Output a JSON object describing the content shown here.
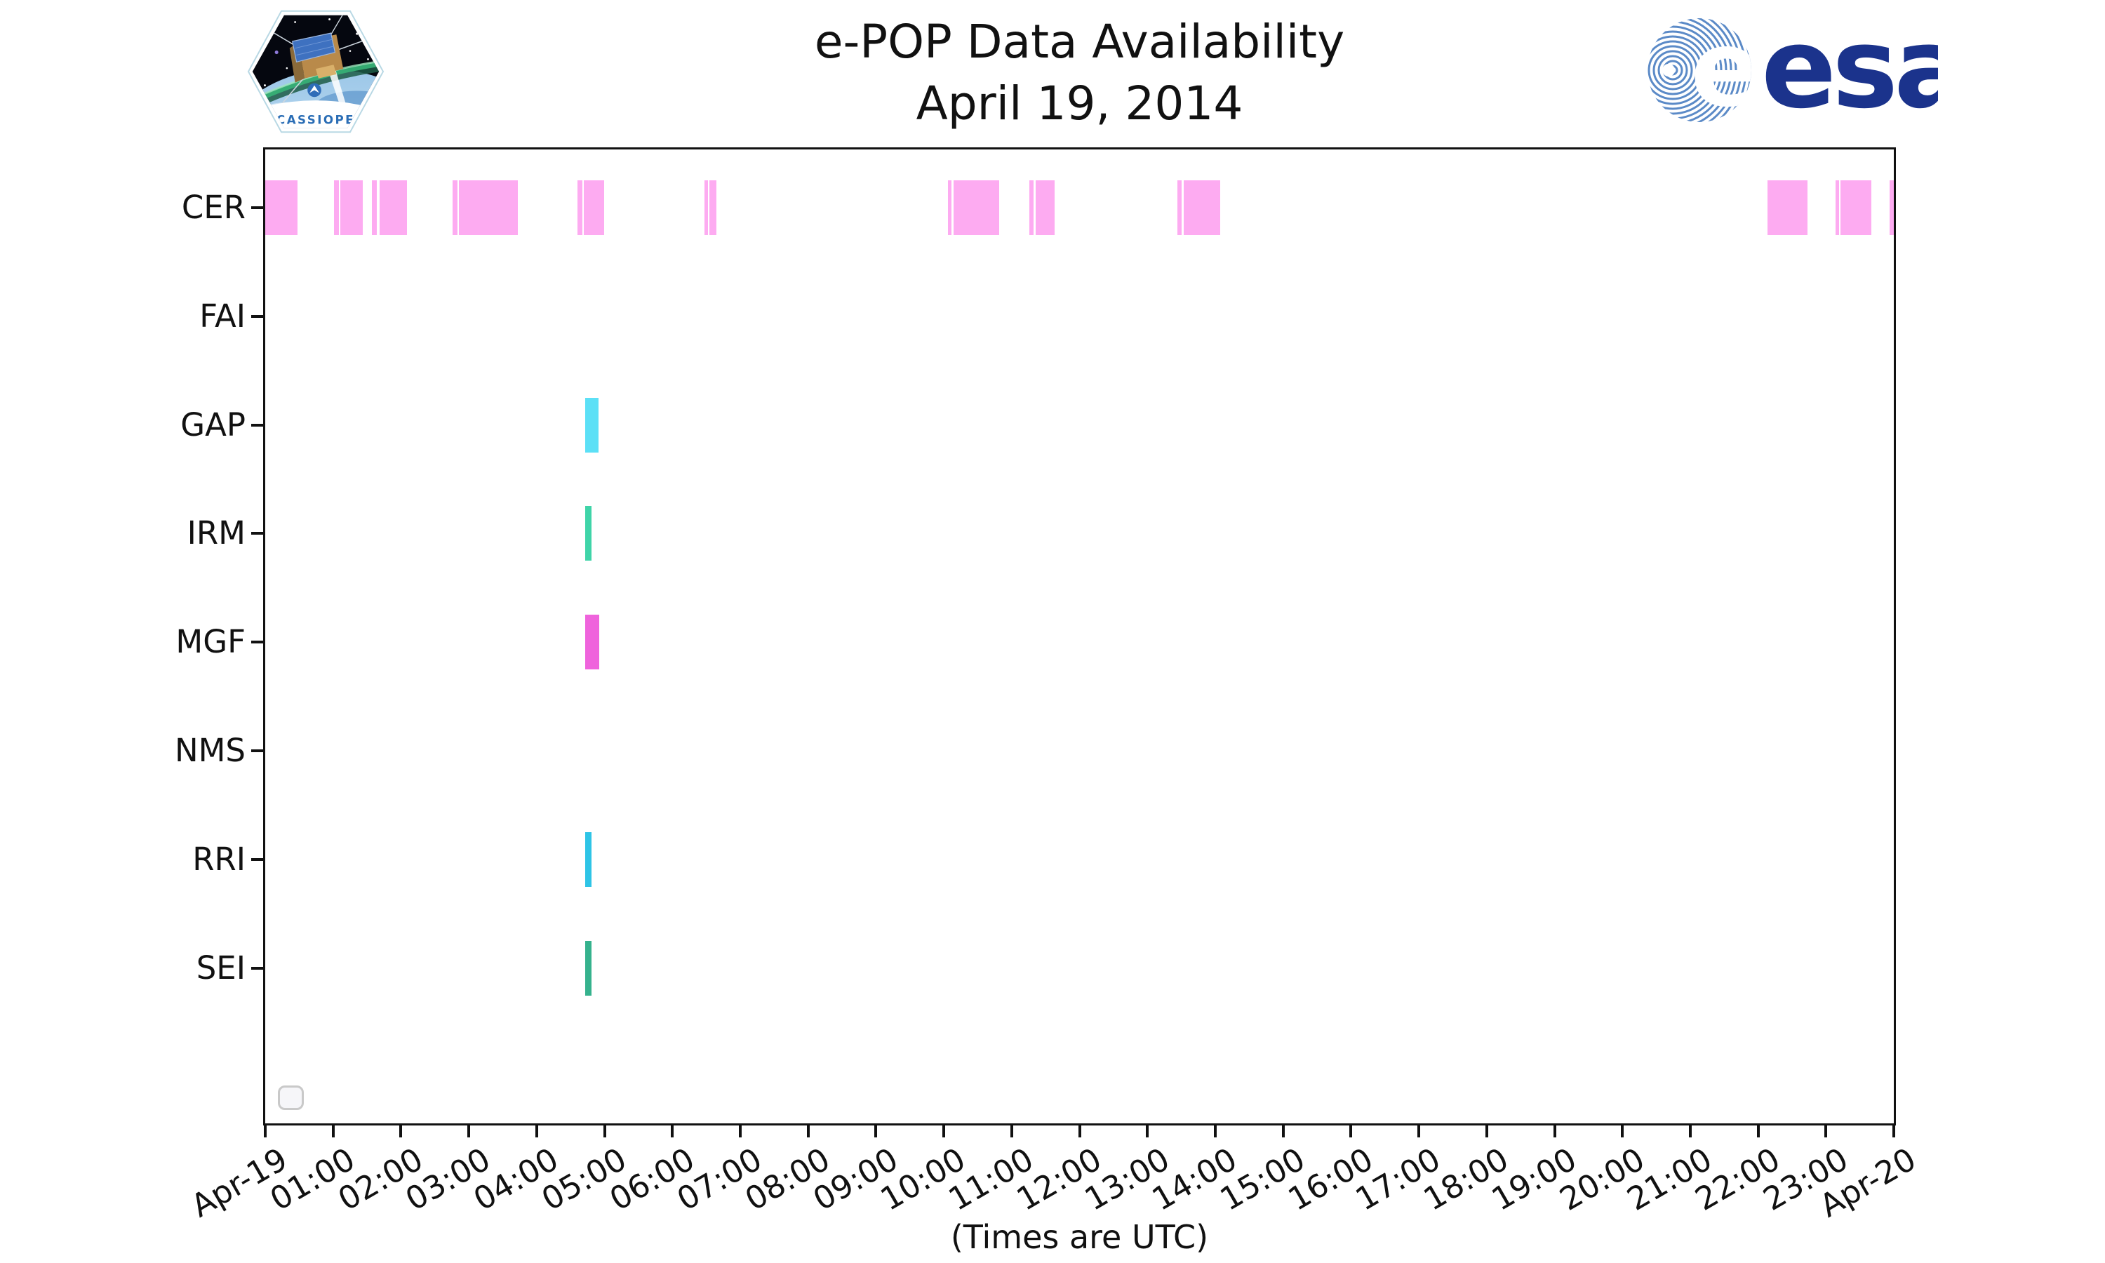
{
  "header": {
    "cassiope_label": "CASSIOPE",
    "esa_text": "esa",
    "esa_blue": "#1b338c",
    "esa_stripe_blue": "#5b8ac7"
  },
  "chart_data": {
    "type": "timeline",
    "title": "e-POP Data Availability",
    "subtitle": "April 19, 2014",
    "xlabel": "(Times are UTC)",
    "x_range_hours": [
      0,
      24
    ],
    "x_tick_labels": [
      "Apr-19",
      "01:00",
      "02:00",
      "03:00",
      "04:00",
      "05:00",
      "06:00",
      "07:00",
      "08:00",
      "09:00",
      "10:00",
      "11:00",
      "12:00",
      "13:00",
      "14:00",
      "15:00",
      "16:00",
      "17:00",
      "18:00",
      "19:00",
      "20:00",
      "21:00",
      "22:00",
      "23:00",
      "Apr-20"
    ],
    "categories": [
      "CER",
      "FAI",
      "GAP",
      "IRM",
      "MGF",
      "NMS",
      "RRI",
      "SEI"
    ],
    "grid": false,
    "legend": "empty-box-bottom-left",
    "series": [
      {
        "name": "CER",
        "color": "#FDABF1",
        "intervals_hours": [
          [
            0.0,
            0.48
          ],
          [
            1.01,
            1.09
          ],
          [
            1.11,
            1.44
          ],
          [
            1.57,
            1.64
          ],
          [
            1.68,
            2.09
          ],
          [
            2.76,
            2.83
          ],
          [
            2.85,
            3.72
          ],
          [
            4.6,
            4.67
          ],
          [
            4.69,
            4.99
          ],
          [
            6.47,
            6.53
          ],
          [
            6.55,
            6.65
          ],
          [
            10.06,
            10.11
          ],
          [
            10.14,
            10.82
          ],
          [
            11.26,
            11.32
          ],
          [
            11.35,
            11.63
          ],
          [
            13.44,
            13.5
          ],
          [
            13.53,
            14.07
          ],
          [
            22.14,
            22.73
          ],
          [
            23.14,
            23.19
          ],
          [
            23.21,
            23.67
          ],
          [
            23.94,
            24.0
          ]
        ]
      },
      {
        "name": "FAI",
        "color": null,
        "intervals_hours": []
      },
      {
        "name": "GAP",
        "color": "#5CE0F6",
        "intervals_hours": [
          [
            4.71,
            4.91
          ]
        ]
      },
      {
        "name": "IRM",
        "color": "#3FD4A8",
        "intervals_hours": [
          [
            4.71,
            4.81
          ]
        ]
      },
      {
        "name": "MGF",
        "color": "#EF63DC",
        "intervals_hours": [
          [
            4.71,
            4.92
          ]
        ]
      },
      {
        "name": "NMS",
        "color": null,
        "intervals_hours": []
      },
      {
        "name": "RRI",
        "color": "#2EC4E6",
        "intervals_hours": [
          [
            4.71,
            4.81
          ]
        ]
      },
      {
        "name": "SEI",
        "color": "#35B28D",
        "intervals_hours": [
          [
            4.71,
            4.81
          ]
        ]
      }
    ]
  }
}
